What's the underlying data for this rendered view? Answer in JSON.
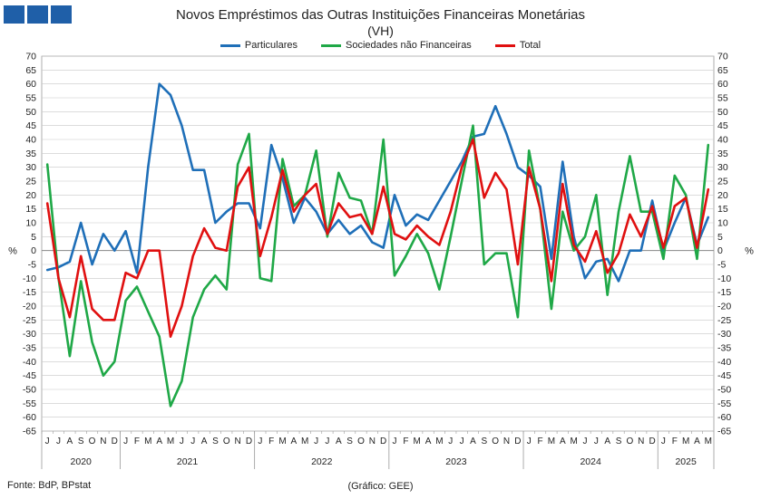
{
  "header": {
    "title": "Novos Empréstimos das Outras Instituições Financeiras Monetárias",
    "subtitle": "(VH)"
  },
  "footer": {
    "source": "Fonte: BdP, BPstat",
    "credit": "(Gráfico: GEE)"
  },
  "colors": {
    "brand": "#1f5fa8",
    "particulares": "#1f6fb8",
    "snf": "#1fa847",
    "total": "#e01010",
    "grid": "#c8c8c8"
  },
  "chart_data": {
    "type": "line",
    "title": "Novos Empréstimos das Outras Instituições Financeiras Monetárias",
    "subtitle": "(VH)",
    "ylabel_left": "%",
    "ylabel_right": "%",
    "ylim": [
      -65,
      70
    ],
    "ytick_step": 5,
    "grid": "horizontal",
    "legend_position": "top-center",
    "month_labels": [
      "J",
      "J",
      "A",
      "S",
      "O",
      "N",
      "D",
      "J",
      "F",
      "M",
      "A",
      "M",
      "J",
      "J",
      "A",
      "S",
      "O",
      "N",
      "D",
      "J",
      "F",
      "M",
      "A",
      "M",
      "J",
      "J",
      "A",
      "S",
      "O",
      "N",
      "D",
      "J",
      "F",
      "M",
      "A",
      "M",
      "J",
      "J",
      "A",
      "S",
      "O",
      "N",
      "D",
      "J",
      "F",
      "M",
      "A",
      "M",
      "J",
      "J",
      "A",
      "S",
      "O",
      "N",
      "D",
      "J",
      "F",
      "M",
      "A",
      "M"
    ],
    "years": [
      {
        "label": "2020",
        "start": 0,
        "count": 7
      },
      {
        "label": "2021",
        "start": 7,
        "count": 12
      },
      {
        "label": "2022",
        "start": 19,
        "count": 12
      },
      {
        "label": "2023",
        "start": 31,
        "count": 12
      },
      {
        "label": "2024",
        "start": 43,
        "count": 12
      },
      {
        "label": "2025",
        "start": 55,
        "count": 5
      }
    ],
    "series": [
      {
        "name": "Particulares",
        "color": "#1f6fb8",
        "values": [
          -7,
          -6,
          -4,
          10,
          -5,
          6,
          0,
          7,
          -8,
          30,
          60,
          56,
          45,
          29,
          29,
          10,
          14,
          17,
          17,
          8,
          38,
          26,
          10,
          19,
          14,
          6,
          11,
          6,
          9,
          3,
          1,
          20,
          9,
          13,
          11,
          18,
          25,
          32,
          41,
          42,
          52,
          42,
          30,
          27,
          23,
          -3,
          32,
          5,
          -10,
          -4,
          -3,
          -11,
          0,
          0,
          18,
          0,
          10,
          19,
          2,
          12
        ]
      },
      {
        "name": "Sociedades não Financeiras",
        "color": "#1fa847",
        "values": [
          31,
          -10,
          -38,
          -11,
          -33,
          -45,
          -40,
          -18,
          -13,
          -22,
          -31,
          -56,
          -47,
          -24,
          -14,
          -9,
          -14,
          31,
          42,
          -10,
          -11,
          33,
          16,
          20,
          36,
          5,
          28,
          19,
          18,
          6,
          40,
          -9,
          -2,
          6,
          -1,
          -14,
          5,
          25,
          45,
          -5,
          -1,
          -1,
          -24,
          36,
          15,
          -21,
          14,
          0,
          5,
          20,
          -16,
          14,
          34,
          14,
          14,
          -3,
          27,
          20,
          -3,
          38
        ]
      },
      {
        "name": "Total",
        "color": "#e01010",
        "values": [
          17,
          -10,
          -24,
          -2,
          -21,
          -25,
          -25,
          -8,
          -10,
          0,
          0,
          -31,
          -20,
          -2,
          8,
          1,
          0,
          23,
          30,
          -2,
          12,
          29,
          14,
          20,
          24,
          6,
          17,
          12,
          13,
          6,
          23,
          6,
          4,
          9,
          5,
          2,
          14,
          30,
          40,
          19,
          28,
          22,
          -5,
          30,
          15,
          -11,
          24,
          2,
          -4,
          7,
          -8,
          -1,
          13,
          5,
          16,
          1,
          16,
          19,
          1,
          22
        ]
      }
    ]
  }
}
